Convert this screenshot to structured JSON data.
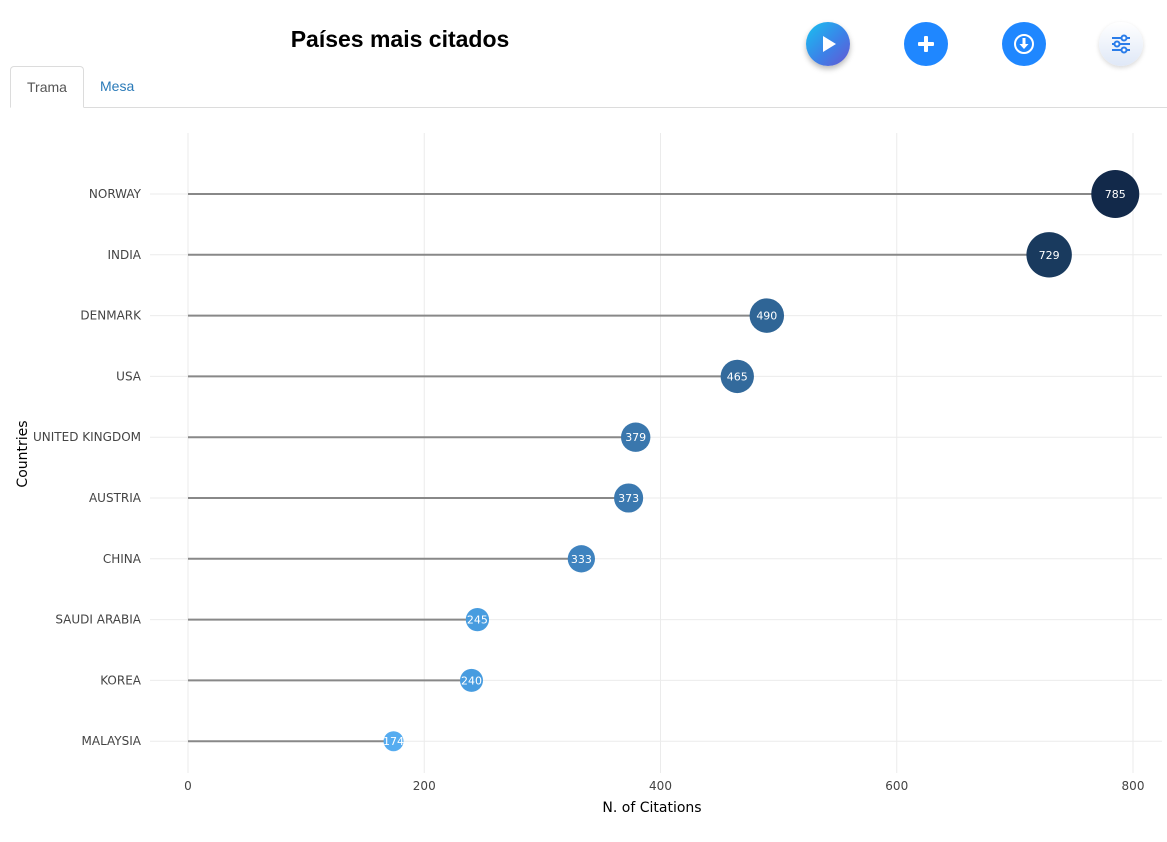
{
  "header": {
    "title": "Países mais citados"
  },
  "toolbar": {
    "buttons": [
      {
        "name": "play",
        "icon": "play-icon"
      },
      {
        "name": "add",
        "icon": "plus-icon"
      },
      {
        "name": "download",
        "icon": "download-icon"
      },
      {
        "name": "settings",
        "icon": "sliders-icon"
      }
    ]
  },
  "tabs": [
    {
      "label": "Trama",
      "active": true
    },
    {
      "label": "Mesa",
      "active": false
    }
  ],
  "chart_data": {
    "type": "lollipop",
    "xlabel": "N. of Citations",
    "ylabel": "Countries",
    "xlim": [
      -60,
      825
    ],
    "xticks": [
      0,
      200,
      400,
      600,
      800
    ],
    "grid": true,
    "categories": [
      "NORWAY",
      "INDIA",
      "DENMARK",
      "USA",
      "UNITED KINGDOM",
      "AUSTRIA",
      "CHINA",
      "SAUDI ARABIA",
      "KOREA",
      "MALAYSIA"
    ],
    "values": [
      785,
      729,
      490,
      465,
      379,
      373,
      333,
      245,
      240,
      174
    ],
    "colors": [
      "#12294a",
      "#193a5e",
      "#2f6596",
      "#336a9c",
      "#3a77ad",
      "#3b79b0",
      "#3f83bf",
      "#479cdf",
      "#479ce0",
      "#56acf0"
    ],
    "stem_color": "#888888"
  }
}
